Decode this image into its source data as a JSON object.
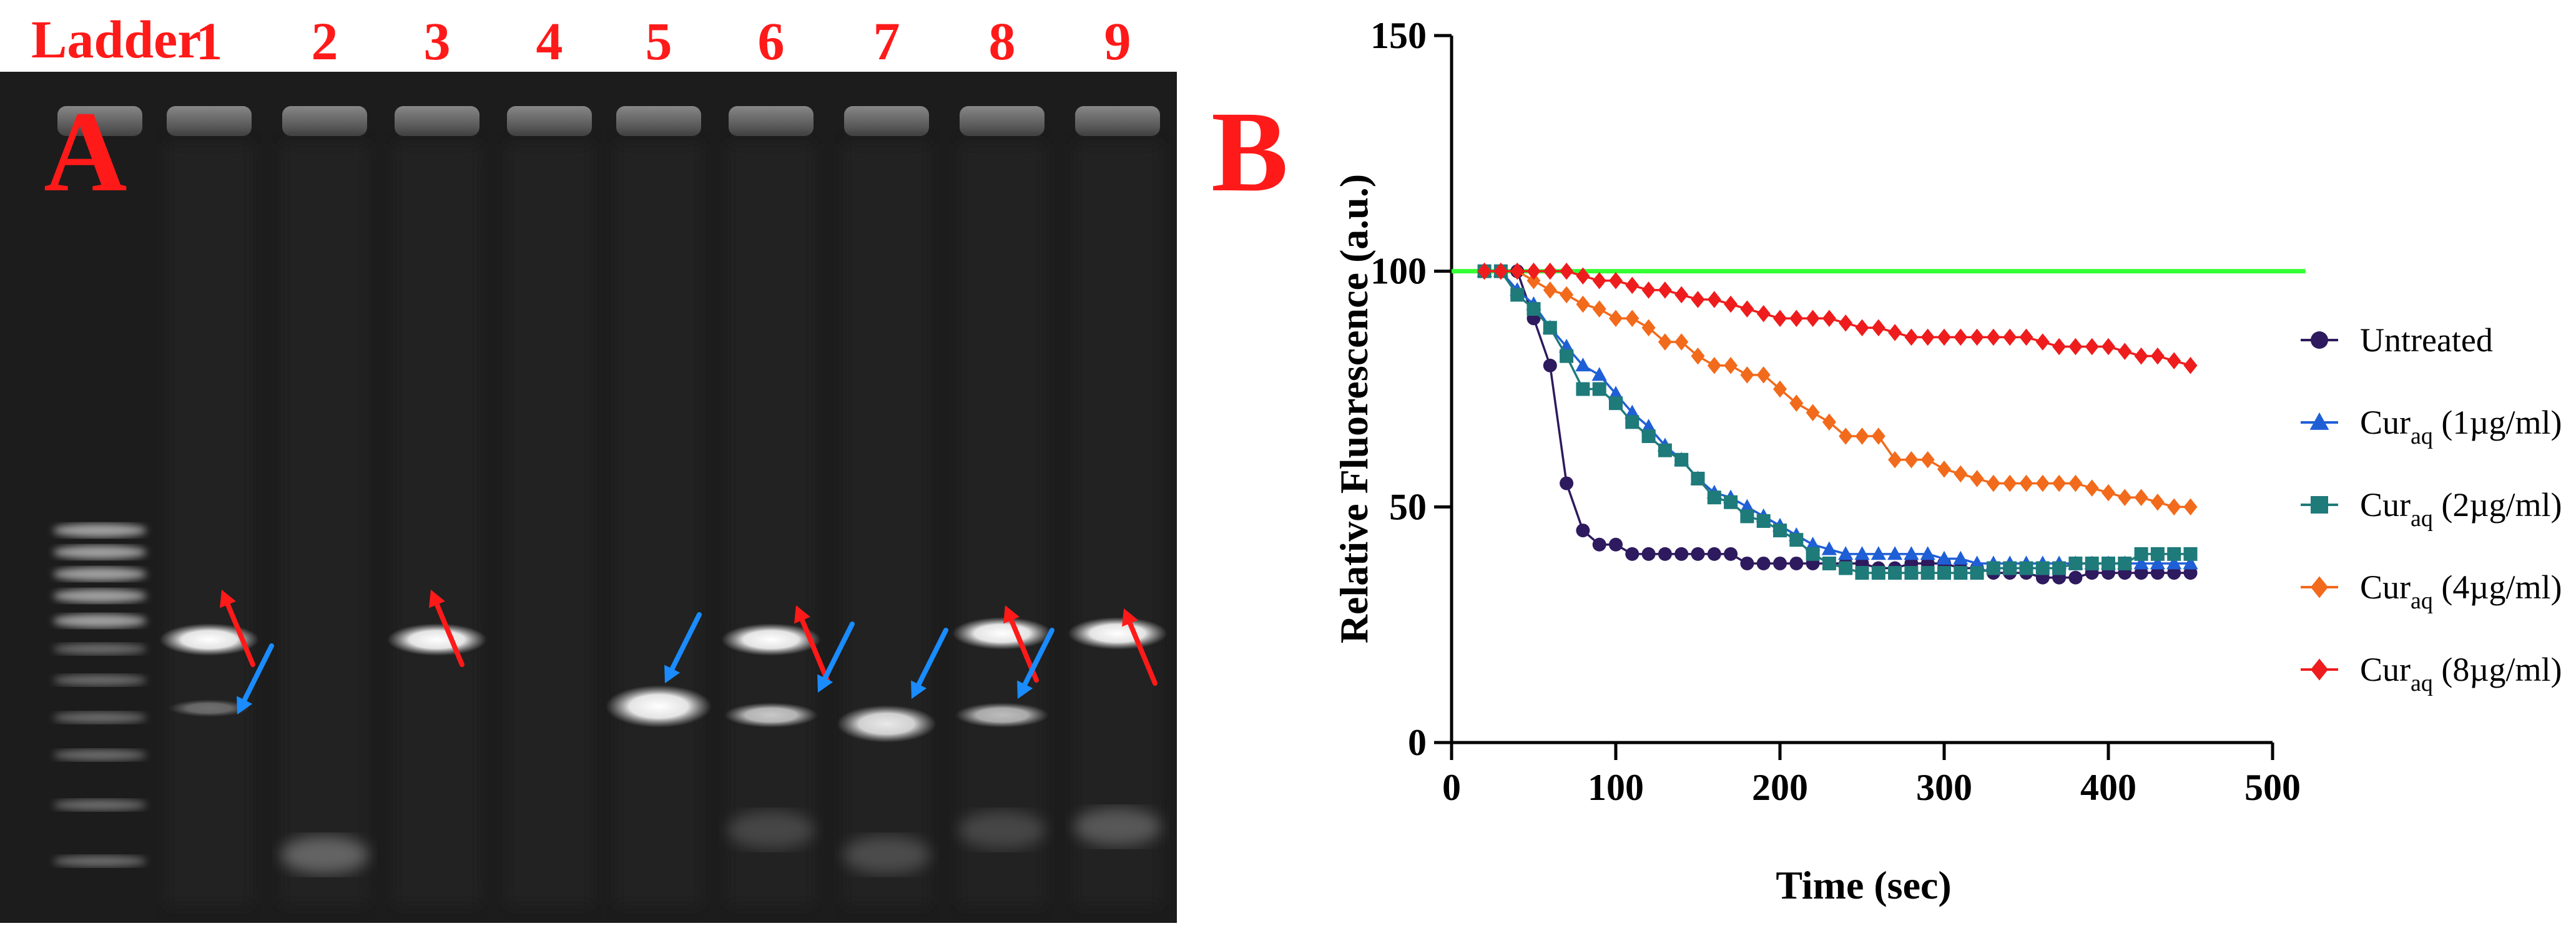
{
  "panel_a": {
    "panel_letter": "A",
    "ladder_label": "Ladder",
    "lane_labels": [
      "1",
      "2",
      "3",
      "4",
      "5",
      "6",
      "7",
      "8",
      "9"
    ],
    "label_color": "#ff1a1a",
    "gel_background": "#1c1c1c",
    "band_color": "#f2f2f2",
    "red_arrow_color": "#ff1a1a",
    "blue_arrow_color": "#1a8cff",
    "red_arrow_lanes": [
      1,
      3,
      6,
      8,
      9
    ],
    "blue_arrow_lanes": [
      1,
      5,
      6,
      7,
      8
    ]
  },
  "panel_b": {
    "panel_letter": "B",
    "panel_letter_color": "#ff1a1a"
  },
  "chart_data": {
    "type": "line",
    "title": "",
    "xlabel": "Time (sec)",
    "ylabel": "Relative Fluorescence (a.u.)",
    "xlim": [
      0,
      500
    ],
    "ylim": [
      0,
      150
    ],
    "x_ticks": [
      0,
      100,
      200,
      300,
      400,
      500
    ],
    "y_ticks": [
      0,
      50,
      100,
      150
    ],
    "grid": false,
    "legend_position": "right",
    "reference_line": {
      "y": 100,
      "x_range": [
        0,
        520
      ],
      "color": "#33ff33"
    },
    "series": [
      {
        "name": "Untreated",
        "name_sub": "",
        "name_suffix": "",
        "marker": "circle",
        "color": "#2e1a5e",
        "points": [
          [
            20,
            100
          ],
          [
            30,
            100
          ],
          [
            40,
            100
          ],
          [
            50,
            90
          ],
          [
            60,
            80
          ],
          [
            70,
            55
          ],
          [
            80,
            45
          ],
          [
            90,
            42
          ],
          [
            100,
            42
          ],
          [
            110,
            40
          ],
          [
            120,
            40
          ],
          [
            130,
            40
          ],
          [
            140,
            40
          ],
          [
            150,
            40
          ],
          [
            160,
            40
          ],
          [
            170,
            40
          ],
          [
            180,
            38
          ],
          [
            190,
            38
          ],
          [
            200,
            38
          ],
          [
            210,
            38
          ],
          [
            220,
            38
          ],
          [
            230,
            38
          ],
          [
            240,
            38
          ],
          [
            250,
            38
          ],
          [
            260,
            37
          ],
          [
            270,
            37
          ],
          [
            280,
            38
          ],
          [
            290,
            38
          ],
          [
            300,
            38
          ],
          [
            310,
            37
          ],
          [
            320,
            37
          ],
          [
            330,
            36
          ],
          [
            340,
            36
          ],
          [
            350,
            36
          ],
          [
            360,
            35
          ],
          [
            370,
            35
          ],
          [
            380,
            35
          ],
          [
            390,
            36
          ],
          [
            400,
            36
          ],
          [
            410,
            36
          ],
          [
            420,
            36
          ],
          [
            430,
            36
          ],
          [
            440,
            36
          ],
          [
            450,
            36
          ]
        ]
      },
      {
        "name": "Cur",
        "name_sub": "aq",
        "name_suffix": " (1µg/ml)",
        "marker": "triangle",
        "color": "#1f5fd6",
        "points": [
          [
            20,
            100
          ],
          [
            30,
            100
          ],
          [
            40,
            96
          ],
          [
            50,
            93
          ],
          [
            60,
            88
          ],
          [
            70,
            84
          ],
          [
            80,
            80
          ],
          [
            90,
            78
          ],
          [
            100,
            74
          ],
          [
            110,
            70
          ],
          [
            120,
            67
          ],
          [
            130,
            63
          ],
          [
            140,
            60
          ],
          [
            150,
            56
          ],
          [
            160,
            53
          ],
          [
            170,
            52
          ],
          [
            180,
            50
          ],
          [
            190,
            48
          ],
          [
            200,
            46
          ],
          [
            210,
            44
          ],
          [
            220,
            42
          ],
          [
            230,
            41
          ],
          [
            240,
            40
          ],
          [
            250,
            40
          ],
          [
            260,
            40
          ],
          [
            270,
            40
          ],
          [
            280,
            40
          ],
          [
            290,
            40
          ],
          [
            300,
            39
          ],
          [
            310,
            39
          ],
          [
            320,
            38
          ],
          [
            330,
            38
          ],
          [
            340,
            38
          ],
          [
            350,
            38
          ],
          [
            360,
            38
          ],
          [
            370,
            38
          ],
          [
            380,
            38
          ],
          [
            390,
            38
          ],
          [
            400,
            38
          ],
          [
            410,
            38
          ],
          [
            420,
            38
          ],
          [
            430,
            38
          ],
          [
            440,
            38
          ],
          [
            450,
            38
          ]
        ]
      },
      {
        "name": "Cur",
        "name_sub": "aq",
        "name_suffix": " (2µg/ml)",
        "marker": "square",
        "color": "#1f7a7a",
        "points": [
          [
            20,
            100
          ],
          [
            30,
            100
          ],
          [
            40,
            95
          ],
          [
            50,
            92
          ],
          [
            60,
            88
          ],
          [
            70,
            82
          ],
          [
            80,
            75
          ],
          [
            90,
            75
          ],
          [
            100,
            72
          ],
          [
            110,
            68
          ],
          [
            120,
            65
          ],
          [
            130,
            62
          ],
          [
            140,
            60
          ],
          [
            150,
            56
          ],
          [
            160,
            52
          ],
          [
            170,
            51
          ],
          [
            180,
            48
          ],
          [
            190,
            47
          ],
          [
            200,
            45
          ],
          [
            210,
            43
          ],
          [
            220,
            40
          ],
          [
            230,
            38
          ],
          [
            240,
            37
          ],
          [
            250,
            36
          ],
          [
            260,
            36
          ],
          [
            270,
            36
          ],
          [
            280,
            36
          ],
          [
            290,
            36
          ],
          [
            300,
            36
          ],
          [
            310,
            36
          ],
          [
            320,
            36
          ],
          [
            330,
            37
          ],
          [
            340,
            37
          ],
          [
            350,
            37
          ],
          [
            360,
            37
          ],
          [
            370,
            37
          ],
          [
            380,
            38
          ],
          [
            390,
            38
          ],
          [
            400,
            38
          ],
          [
            410,
            38
          ],
          [
            420,
            40
          ],
          [
            430,
            40
          ],
          [
            440,
            40
          ],
          [
            450,
            40
          ]
        ]
      },
      {
        "name": "Cur",
        "name_sub": "aq",
        "name_suffix": " (4µg/ml)",
        "marker": "diamond",
        "color": "#f26a1b",
        "points": [
          [
            20,
            100
          ],
          [
            30,
            100
          ],
          [
            40,
            100
          ],
          [
            50,
            98
          ],
          [
            60,
            96
          ],
          [
            70,
            95
          ],
          [
            80,
            93
          ],
          [
            90,
            92
          ],
          [
            100,
            90
          ],
          [
            110,
            90
          ],
          [
            120,
            88
          ],
          [
            130,
            85
          ],
          [
            140,
            85
          ],
          [
            150,
            82
          ],
          [
            160,
            80
          ],
          [
            170,
            80
          ],
          [
            180,
            78
          ],
          [
            190,
            78
          ],
          [
            200,
            75
          ],
          [
            210,
            72
          ],
          [
            220,
            70
          ],
          [
            230,
            68
          ],
          [
            240,
            65
          ],
          [
            250,
            65
          ],
          [
            260,
            65
          ],
          [
            270,
            60
          ],
          [
            280,
            60
          ],
          [
            290,
            60
          ],
          [
            300,
            58
          ],
          [
            310,
            57
          ],
          [
            320,
            56
          ],
          [
            330,
            55
          ],
          [
            340,
            55
          ],
          [
            350,
            55
          ],
          [
            360,
            55
          ],
          [
            370,
            55
          ],
          [
            380,
            55
          ],
          [
            390,
            54
          ],
          [
            400,
            53
          ],
          [
            410,
            52
          ],
          [
            420,
            52
          ],
          [
            430,
            51
          ],
          [
            440,
            50
          ],
          [
            450,
            50
          ]
        ]
      },
      {
        "name": "Cur",
        "name_sub": "aq",
        "name_suffix": " (8µg/ml)",
        "marker": "diamond",
        "color": "#ee1c1c",
        "points": [
          [
            20,
            100
          ],
          [
            30,
            100
          ],
          [
            40,
            100
          ],
          [
            50,
            100
          ],
          [
            60,
            100
          ],
          [
            70,
            100
          ],
          [
            80,
            99
          ],
          [
            90,
            98
          ],
          [
            100,
            98
          ],
          [
            110,
            97
          ],
          [
            120,
            96
          ],
          [
            130,
            96
          ],
          [
            140,
            95
          ],
          [
            150,
            94
          ],
          [
            160,
            94
          ],
          [
            170,
            93
          ],
          [
            180,
            92
          ],
          [
            190,
            91
          ],
          [
            200,
            90
          ],
          [
            210,
            90
          ],
          [
            220,
            90
          ],
          [
            230,
            90
          ],
          [
            240,
            89
          ],
          [
            250,
            88
          ],
          [
            260,
            88
          ],
          [
            270,
            87
          ],
          [
            280,
            86
          ],
          [
            290,
            86
          ],
          [
            300,
            86
          ],
          [
            310,
            86
          ],
          [
            320,
            86
          ],
          [
            330,
            86
          ],
          [
            340,
            86
          ],
          [
            350,
            86
          ],
          [
            360,
            85
          ],
          [
            370,
            84
          ],
          [
            380,
            84
          ],
          [
            390,
            84
          ],
          [
            400,
            84
          ],
          [
            410,
            83
          ],
          [
            420,
            82
          ],
          [
            430,
            82
          ],
          [
            440,
            81
          ],
          [
            450,
            80
          ]
        ]
      }
    ]
  }
}
